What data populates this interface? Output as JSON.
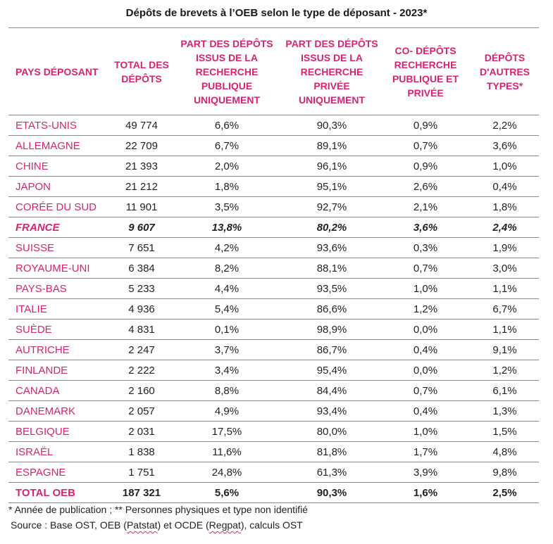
{
  "title": "Dépôts de brevets à l’OEB selon le type de déposant - 2023*",
  "accent_color": "#d6246e",
  "headers": {
    "country": "PAYS DÉPOSANT",
    "total": "TOTAL DES DÉPÔTS",
    "public_only": "PART DES DÉPÔTS ISSUS DE LA RECHERCHE PUBLIQUE UNIQUEMENT",
    "private_only": "PART DES DÉPÔTS ISSUS DE LA RECHERCHE PRIVÉE UNIQUEMENT",
    "co_deposits": "CO- DÉPÔTS RECHERCHE PUBLIQUE ET PRIVÉE",
    "other_types": "DÉPÔTS D'AUTRES TYPES*"
  },
  "rows": [
    {
      "country": "ETATS-UNIS",
      "total": "49 774",
      "public_only": "6,6%",
      "private_only": "90,3%",
      "co_deposits": "0,9%",
      "other_types": "2,2%"
    },
    {
      "country": "ALLEMAGNE",
      "total": "22 709",
      "public_only": "6,7%",
      "private_only": "89,1%",
      "co_deposits": "0,7%",
      "other_types": "3,6%"
    },
    {
      "country": "CHINE",
      "total": "21 393",
      "public_only": "2,0%",
      "private_only": "96,1%",
      "co_deposits": "0,9%",
      "other_types": "1,0%"
    },
    {
      "country": "JAPON",
      "total": "21 212",
      "public_only": "1,8%",
      "private_only": "95,1%",
      "co_deposits": "2,6%",
      "other_types": "0,4%"
    },
    {
      "country": "CORÉE DU SUD",
      "total": "11 901",
      "public_only": "3,5%",
      "private_only": "92,7%",
      "co_deposits": "2,1%",
      "other_types": "1,8%"
    },
    {
      "country": "FRANCE",
      "total": "9 607",
      "public_only": "13,8%",
      "private_only": "80,2%",
      "co_deposits": "3,6%",
      "other_types": "2,4%"
    },
    {
      "country": "SUISSE",
      "total": "7 651",
      "public_only": "4,2%",
      "private_only": "93,6%",
      "co_deposits": "0,3%",
      "other_types": "1,9%"
    },
    {
      "country": "ROYAUME-UNI",
      "total": "6 384",
      "public_only": "8,2%",
      "private_only": "88,1%",
      "co_deposits": "0,7%",
      "other_types": "3,0%"
    },
    {
      "country": "PAYS-BAS",
      "total": "5 233",
      "public_only": "4,4%",
      "private_only": "93,5%",
      "co_deposits": "1,0%",
      "other_types": "1,1%"
    },
    {
      "country": "ITALIE",
      "total": "4 936",
      "public_only": "5,4%",
      "private_only": "86,6%",
      "co_deposits": "1,2%",
      "other_types": "6,7%"
    },
    {
      "country": "SUÈDE",
      "total": "4 831",
      "public_only": "0,1%",
      "private_only": "98,9%",
      "co_deposits": "0,0%",
      "other_types": "1,1%"
    },
    {
      "country": "AUTRICHE",
      "total": "2 247",
      "public_only": "3,7%",
      "private_only": "86,7%",
      "co_deposits": "0,4%",
      "other_types": "9,1%"
    },
    {
      "country": "FINLANDE",
      "total": "2 222",
      "public_only": "3,4%",
      "private_only": "95,4%",
      "co_deposits": "0,0%",
      "other_types": "1,2%"
    },
    {
      "country": "CANADA",
      "total": "2 160",
      "public_only": "8,8%",
      "private_only": "84,4%",
      "co_deposits": "0,7%",
      "other_types": "6,1%"
    },
    {
      "country": "DANEMARK",
      "total": "2 057",
      "public_only": "4,9%",
      "private_only": "93,4%",
      "co_deposits": "0,4%",
      "other_types": "1,3%"
    },
    {
      "country": "BELGIQUE",
      "total": "2 031",
      "public_only": "17,5%",
      "private_only": "80,0%",
      "co_deposits": "1,0%",
      "other_types": "1,5%"
    },
    {
      "country": "ISRAËL",
      "total": "1 838",
      "public_only": "11,6%",
      "private_only": "81,8%",
      "co_deposits": "1,7%",
      "other_types": "4,8%"
    },
    {
      "country": "ESPAGNE",
      "total": "1 751",
      "public_only": "24,8%",
      "private_only": "61,3%",
      "co_deposits": "3,9%",
      "other_types": "9,8%"
    }
  ],
  "total_row": {
    "country": "TOTAL OEB",
    "total": "187 321",
    "public_only": "5,6%",
    "private_only": "90,3%",
    "co_deposits": "1,6%",
    "other_types": "2,5%"
  },
  "footnotes": {
    "line1": "* Année de publication ; ** Personnes physiques et type non identifié",
    "source_prefix": "Source : Base OST, OEB (",
    "patstat": "Patstat",
    "source_mid": ") et OCDE (",
    "regpat": "Regpat",
    "source_suffix": "), calculs OST"
  }
}
